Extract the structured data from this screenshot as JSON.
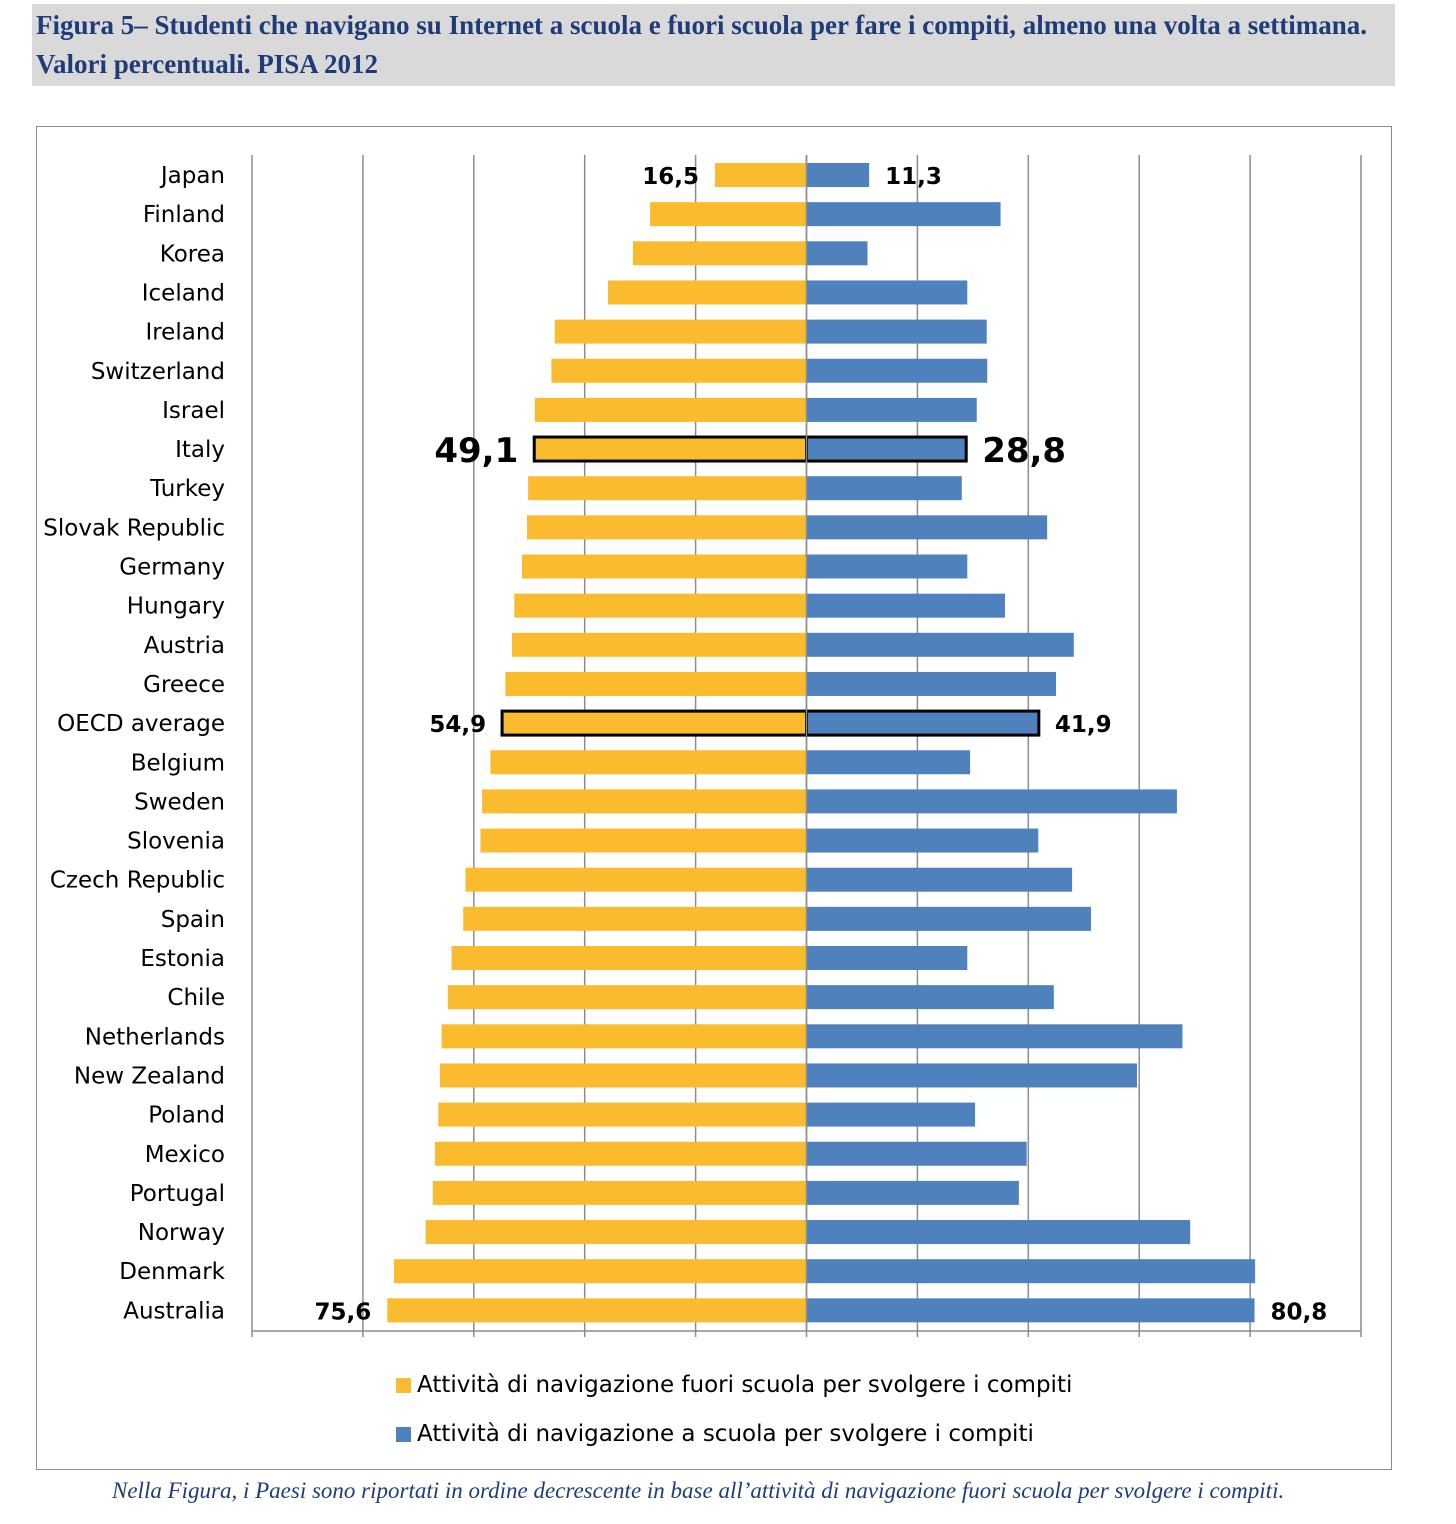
{
  "page": {
    "title": "Figura 5– Studenti che navigano su Internet a scuola e fuori scuola per fare i compiti, almeno una volta a settimana. Valori percentuali. PISA 2012",
    "footnote": "Nella Figura, i Paesi sono riportati in ordine decrescente in base all’attività di navigazione fuori scuola per svolgere i compiti."
  },
  "colors": {
    "outside": "#fbbb2e",
    "school": "#4f81bd",
    "title_band": "#d9d9d9",
    "title_text": "#1f3c78"
  },
  "legend": {
    "outside_label": "Attività di navigazione fuori scuola per svolgere i compiti",
    "school_label": "Attività di navigazione a scuola per svolgere i compiti"
  },
  "chart_data": {
    "type": "bar",
    "orientation": "horizontal-diverging",
    "xlim": [
      -100,
      100
    ],
    "grid": true,
    "legend_position": "bottom",
    "categories": [
      "Japan",
      "Finland",
      "Korea",
      "Iceland",
      "Ireland",
      "Switzerland",
      "Israel",
      "Italy",
      "Turkey",
      "Slovak Republic",
      "Germany",
      "Hungary",
      "Austria",
      "Greece",
      "OECD average",
      "Belgium",
      "Sweden",
      "Slovenia",
      "Czech Republic",
      "Spain",
      "Estonia",
      "Chile",
      "Netherlands",
      "New Zealand",
      "Poland",
      "Mexico",
      "Portugal",
      "Norway",
      "Denmark",
      "Australia"
    ],
    "highlighted": [
      "Italy",
      "OECD average"
    ],
    "series": [
      {
        "name": "Attività di navigazione fuori scuola per svolgere i compiti",
        "values": [
          16.5,
          28.2,
          31.3,
          35.8,
          45.4,
          46.0,
          49.0,
          49.1,
          50.2,
          50.4,
          51.3,
          52.7,
          53.1,
          54.3,
          54.9,
          57.0,
          58.5,
          58.8,
          61.5,
          61.9,
          64.0,
          64.7,
          65.8,
          66.1,
          66.4,
          67.0,
          67.4,
          68.7,
          74.4,
          75.6
        ]
      },
      {
        "name": "Attività di navigazione a scuola per svolgere i compiti",
        "values": [
          11.3,
          35.0,
          11.0,
          29.0,
          32.5,
          32.6,
          30.7,
          28.8,
          28.0,
          43.4,
          29.0,
          35.8,
          48.2,
          45.0,
          41.9,
          29.5,
          66.8,
          41.8,
          47.9,
          51.3,
          29.0,
          44.6,
          67.8,
          59.6,
          30.4,
          39.7,
          38.3,
          69.2,
          80.9,
          80.8
        ]
      }
    ],
    "data_labels": [
      {
        "category": "Japan",
        "outside": "16,5",
        "school": "11,3"
      },
      {
        "category": "Italy",
        "outside": "49,1",
        "school": "28,8"
      },
      {
        "category": "OECD average",
        "outside": "54,9",
        "school": "41,9"
      },
      {
        "category": "Australia",
        "outside": "75,6",
        "school": "80,8"
      }
    ]
  }
}
